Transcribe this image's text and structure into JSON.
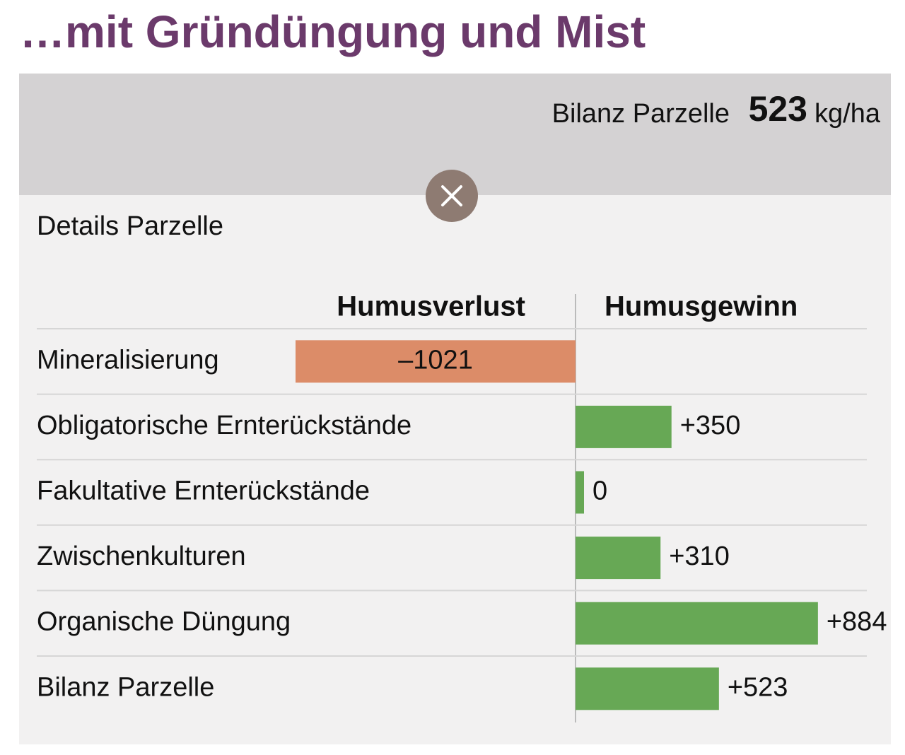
{
  "header": {
    "title": "…mit Gründüngung und Mist"
  },
  "summary": {
    "label": "Bilanz Parzelle",
    "value": 523,
    "unit": "kg/ha"
  },
  "details": {
    "title": "Details Parzelle"
  },
  "chart_data": {
    "type": "diverging-bar",
    "column_labels": [
      "Humusverlust",
      "Humusgewinn"
    ],
    "categories": [
      "Mineralisierung",
      "Obligatorische Ernterückstände",
      "Fakultative Ernterückstände",
      "Zwischenkulturen",
      "Organische Düngung",
      "Bilanz Parzelle"
    ],
    "values": [
      -1021,
      350,
      0,
      310,
      884,
      523
    ],
    "value_labels": [
      "–1021",
      "+350",
      "0",
      "+310",
      "+884",
      "+523"
    ],
    "negative_color": "#dc8c68",
    "positive_color": "#67a855"
  }
}
